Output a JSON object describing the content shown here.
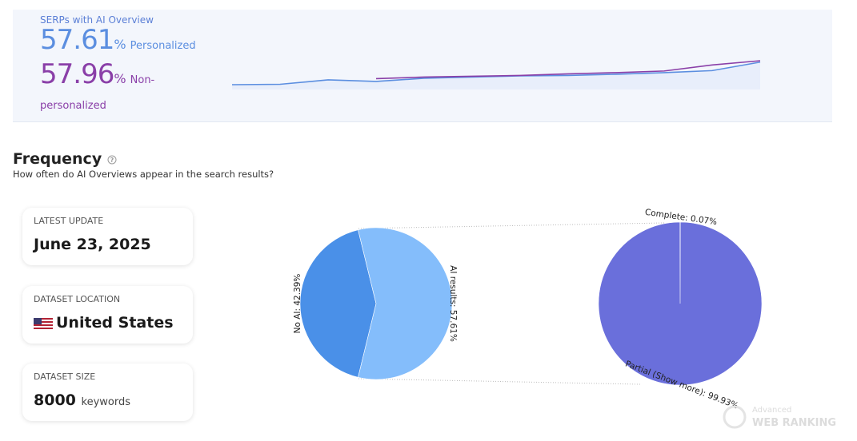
{
  "header": {
    "label": "SERPs with AI Overview",
    "personalized": {
      "value": "57.61",
      "unit": "%",
      "label": "Personalized"
    },
    "non_personalized": {
      "value": "57.96",
      "unit": "%",
      "label": "Non-personalized"
    }
  },
  "sparkline": {
    "type": "line",
    "series": [
      {
        "color": "#5b8ee0",
        "values": [
          52.0,
          52.1,
          53.2,
          52.8,
          53.6,
          53.9,
          54.2,
          54.3,
          54.6,
          55.0,
          55.5,
          57.61
        ]
      },
      {
        "color": "#8a3fa8",
        "values": [
          null,
          null,
          null,
          53.5,
          53.9,
          54.1,
          54.3,
          54.7,
          55.0,
          55.4,
          56.9,
          57.96
        ]
      }
    ]
  },
  "frequency": {
    "title": "Frequency",
    "subtitle": "How often do AI Overviews appear in the search results?"
  },
  "cards": [
    {
      "label": "LATEST UPDATE",
      "value": "June 23, 2025"
    },
    {
      "label": "DATASET LOCATION",
      "value": "United States"
    },
    {
      "label": "DATASET SIZE",
      "value": 8000,
      "unit": "keywords"
    }
  ],
  "charts": [
    {
      "type": "pie",
      "categories": [
        "No AI",
        "AI results"
      ],
      "values": [
        42.39,
        57.61
      ],
      "value_labels": [
        "No AI: 42.39%",
        "AI results: 57.61%"
      ],
      "colors": [
        "#4a90e8",
        "#84bdfb"
      ]
    },
    {
      "type": "pie",
      "categories": [
        "Complete",
        "Partial (Show more)"
      ],
      "values": [
        0.07,
        99.93
      ],
      "value_labels": [
        "Complete: 0.07%",
        "Partial (Show more): 99.93%"
      ],
      "colors": [
        "#6a6fdb",
        "#6a6fdb"
      ]
    }
  ],
  "watermark": {
    "line1": "Advanced",
    "line2": "WEB RANKING"
  }
}
